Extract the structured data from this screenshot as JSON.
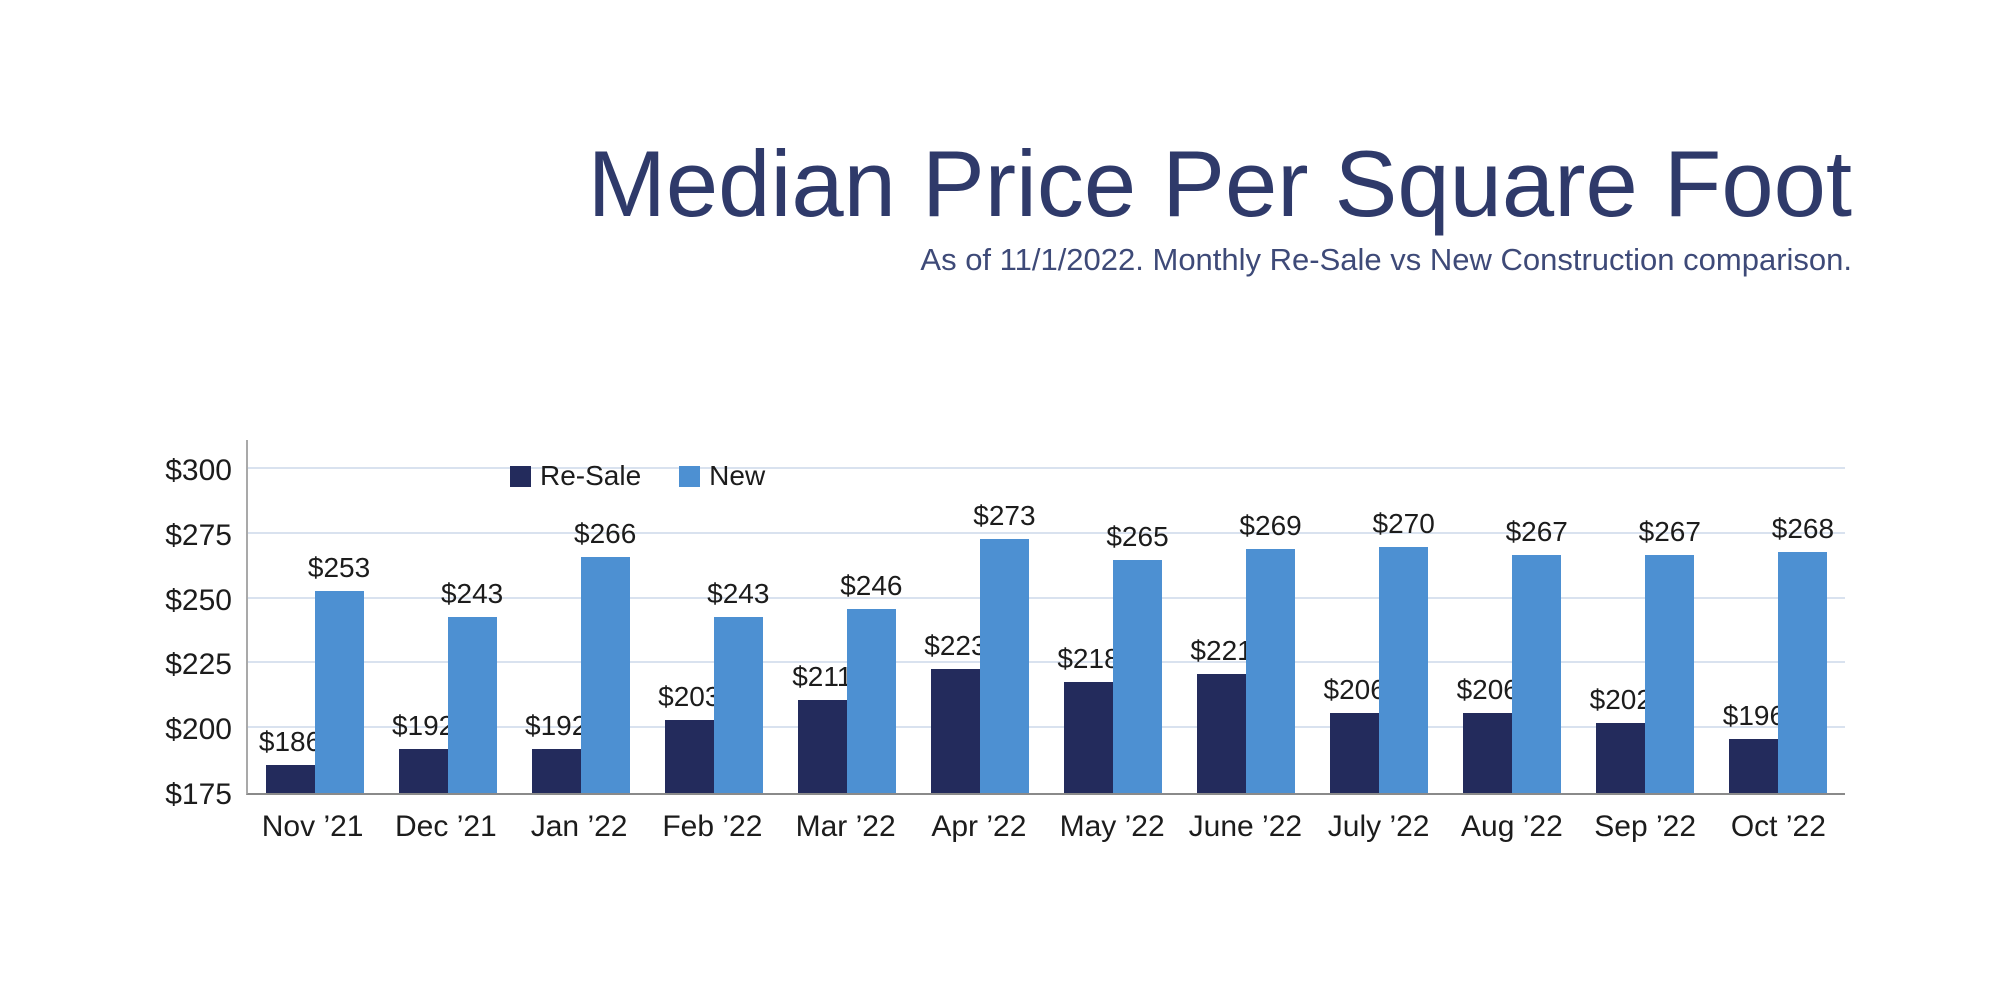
{
  "header": {
    "title": "Median Price Per Square Foot",
    "subtitle": "As of 11/1/2022. Monthly Re-Sale vs New Construction comparison."
  },
  "chart_data": {
    "type": "bar",
    "title": "Median Price Per Square Foot",
    "subtitle": "As of 11/1/2022. Monthly Re-Sale vs New Construction comparison.",
    "categories": [
      "Nov ’21",
      "Dec ’21",
      "Jan ’22",
      "Feb ’22",
      "Mar ’22",
      "Apr ’22",
      "May ’22",
      "June ’22",
      "July ’22",
      "Aug ’22",
      "Sep ’22",
      "Oct ’22"
    ],
    "series": [
      {
        "name": "Re-Sale",
        "color": "#232b5c",
        "values": [
          186,
          192,
          192,
          203,
          211,
          223,
          218,
          221,
          206,
          206,
          202,
          196
        ]
      },
      {
        "name": "New",
        "color": "#4d90d2",
        "values": [
          253,
          243,
          266,
          243,
          246,
          273,
          265,
          269,
          270,
          267,
          267,
          268
        ]
      }
    ],
    "value_prefix": "$",
    "ylim": [
      175,
      300
    ],
    "yticks": [
      175,
      200,
      225,
      250,
      275,
      300
    ],
    "ytick_labels": [
      "$175",
      "$200",
      "$225",
      "$250",
      "$275",
      "$300"
    ],
    "grid": true,
    "legend_position": "inside-top-left",
    "colors": {
      "title": "#2f3a6a",
      "subtitle": "#3e4a78",
      "axis_text": "#1c1c1c",
      "gridline": "#d9e2ef",
      "axis_line": "#a9a9a9",
      "baseline": "#8a8a8a",
      "background": "#ffffff"
    }
  }
}
